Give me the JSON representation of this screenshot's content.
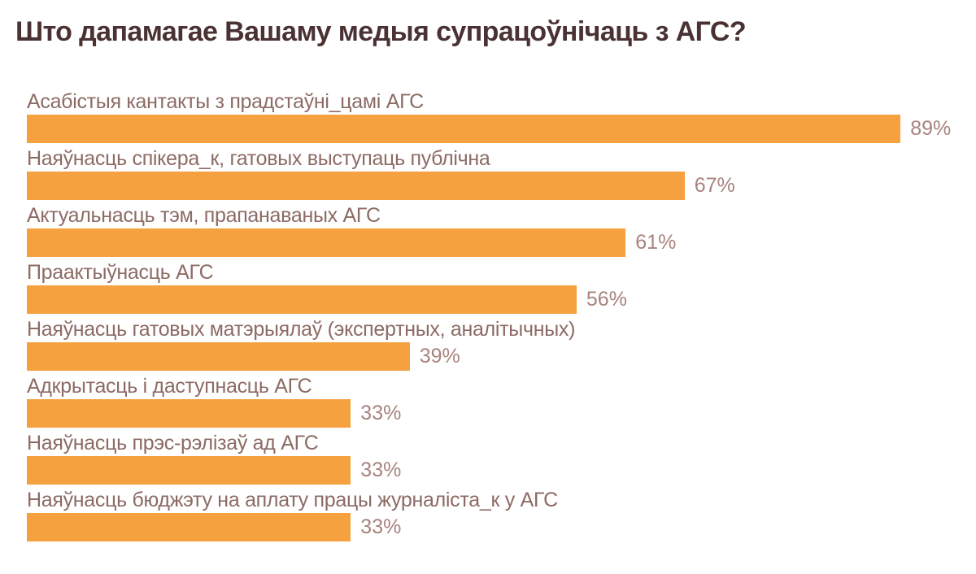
{
  "title": "Што дапамагае Вашаму медыя супрацоўнічаць з АГС?",
  "chart_data": {
    "type": "bar",
    "orientation": "horizontal",
    "title": "Што дапамагае Вашаму медыя супрацоўнічаць з АГС?",
    "categories": [
      "Асабістыя кантакты з прадстаўні_цамі АГС",
      "Наяўнасць спікера_к, гатовых выступаць публічна",
      "Актуальнасць тэм, прапанаваных АГС",
      "Праактыўнасць АГС",
      "Наяўнасць гатовых матэрыялаў (экспертных, аналітычных)",
      "Адкрытасць і даступнасць АГС",
      "Наяўнасць прэс-рэлізаў ад АГС",
      "Наяўнасць бюджэту на аплату працы журналіста_к у АГС"
    ],
    "values": [
      89,
      67,
      61,
      56,
      39,
      33,
      33,
      33
    ],
    "value_labels": [
      "89%",
      "67%",
      "61%",
      "56%",
      "39%",
      "33%",
      "33%",
      "33%"
    ],
    "value_suffix": "%",
    "xlim": [
      0,
      100
    ],
    "grid": false,
    "legend": false,
    "colors": {
      "bar": "#F6A13F",
      "title": "#4A3233",
      "category_label": "#8C6B64",
      "value_label": "#A8837E",
      "background": "#FFFFFF"
    }
  }
}
